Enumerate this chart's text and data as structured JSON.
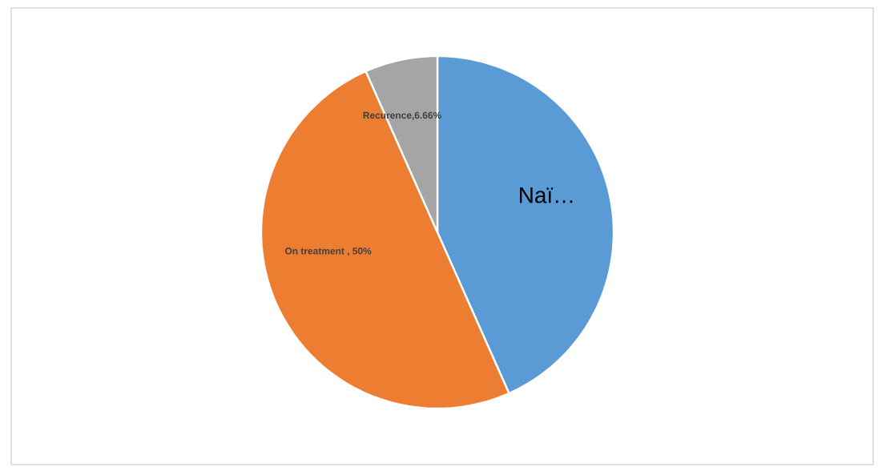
{
  "chart_data": {
    "type": "pie",
    "categories": [
      null,
      null,
      null
    ],
    "values": [
      43.34,
      50,
      6.66
    ],
    "value_labels": [
      "Naï…",
      "On treatment , 50%",
      "Recurence,6.66%"
    ],
    "colors": [
      "#5b9bd5",
      "#ed7d31",
      "#a5a5a5"
    ]
  }
}
